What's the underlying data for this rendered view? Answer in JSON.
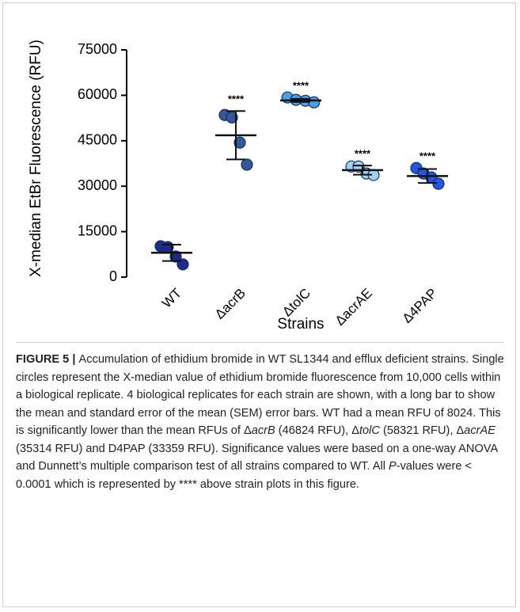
{
  "chart_data": {
    "type": "dotplot",
    "y_label": "X-median EtBr Fluorescence (RFU)",
    "x_label": "Strains",
    "categories": [
      "WT",
      "ΔacrB",
      "ΔtolC",
      "ΔacrAE",
      "Δ4PAP"
    ],
    "colors": [
      "#1c2c8c",
      "#34589a",
      "#4aa0e6",
      "#9fd3f3",
      "#2256e8"
    ],
    "values": [
      [
        10200,
        9900,
        6800,
        4200
      ],
      [
        53500,
        52700,
        44400,
        37100
      ],
      [
        59300,
        58500,
        58200,
        57700
      ],
      [
        36500,
        36500,
        34200,
        33700
      ],
      [
        36000,
        34200,
        32900,
        30800
      ]
    ],
    "means": [
      8024,
      46824,
      58321,
      35314,
      33359
    ],
    "errors": [
      2700,
      8000,
      500,
      1500,
      2300
    ],
    "annotations": [
      null,
      "****",
      "****",
      "****",
      "****"
    ],
    "ylim": [
      0,
      75000
    ],
    "yticks": [
      0,
      15000,
      30000,
      45000,
      60000,
      75000
    ]
  },
  "caption": [
    {
      "text": "FIGURE 5 | ",
      "bold": true
    },
    {
      "text": "Accumulation of ethidium bromide in WT SL1344 and efflux deficient strains. Single circles represent the X-median value of ethidium bromide fluorescence from 10,000 cells within a biological replicate. 4 biological replicates for each strain are shown, with a long bar to show the mean and standard error of the mean (SEM) error bars. WT had a mean RFU of 8024. This is significantly lower than the mean RFUs of Δ"
    },
    {
      "text": "acrB",
      "italic": true
    },
    {
      "text": " (46824 RFU), Δ"
    },
    {
      "text": "tolC",
      "italic": true
    },
    {
      "text": " (58321 RFU), Δ"
    },
    {
      "text": "acrAE",
      "italic": true
    },
    {
      "text": " (35314 RFU) and D4PAP (33359 RFU). Significance values were based on a one-way ANOVA and Dunnett’s multiple comparison test of all strains compared to WT. All "
    },
    {
      "text": "P",
      "italic": true
    },
    {
      "text": "-values were < 0.0001 which is represented by **** above strain plots in this figure."
    }
  ]
}
